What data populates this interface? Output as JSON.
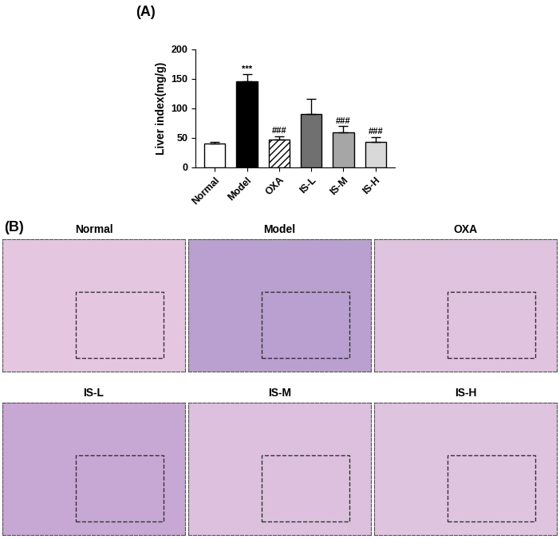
{
  "chart_data": {
    "type": "bar",
    "panel_label": "(A)",
    "y_label": "Liver index(mg/g)",
    "categories": [
      "Normal",
      "Model",
      "OXA",
      "IS-L",
      "IS-M",
      "IS-H"
    ],
    "values": [
      41,
      146,
      47,
      90,
      59,
      43
    ],
    "errors": [
      2,
      12,
      6,
      26,
      11,
      9
    ],
    "significance": [
      null,
      "***",
      "###",
      null,
      "###",
      "###"
    ],
    "colors": [
      "#ffffff",
      "#000000",
      "#ffffff",
      "#707070",
      "#a6a6a6",
      "#d9d9d9"
    ],
    "ylim": [
      0,
      200
    ],
    "yticks": [
      0,
      50,
      100,
      150,
      200
    ],
    "grid": false
  },
  "histology": {
    "panel_label": "(B)",
    "images": [
      "Normal",
      "Model",
      "OXA",
      "IS-L",
      "IS-M",
      "IS-H"
    ]
  }
}
